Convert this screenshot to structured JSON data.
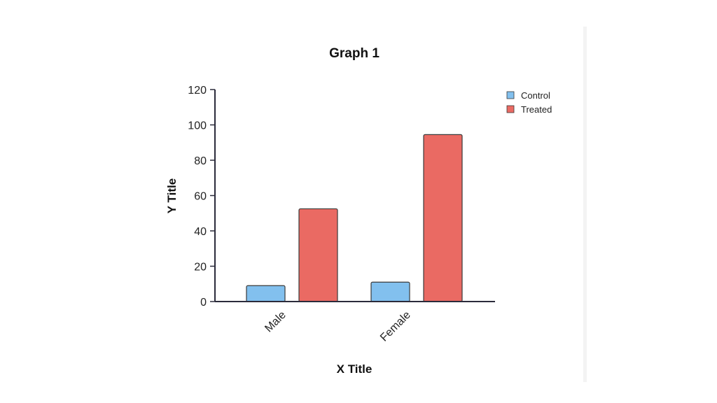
{
  "chart_data": {
    "type": "bar",
    "title": "Graph 1",
    "xlabel": "X Title",
    "ylabel": "Y Title",
    "categories": [
      "Male",
      "Female"
    ],
    "series": [
      {
        "name": "Control",
        "values": [
          9,
          11
        ],
        "color": "#82c0ee"
      },
      {
        "name": "Treated",
        "values": [
          52.5,
          94.5
        ],
        "color": "#ea6a63"
      }
    ],
    "ylim": [
      0,
      120
    ],
    "yticks": [
      0,
      20,
      40,
      60,
      80,
      100,
      120
    ],
    "legend": "top-right",
    "grid": false
  }
}
